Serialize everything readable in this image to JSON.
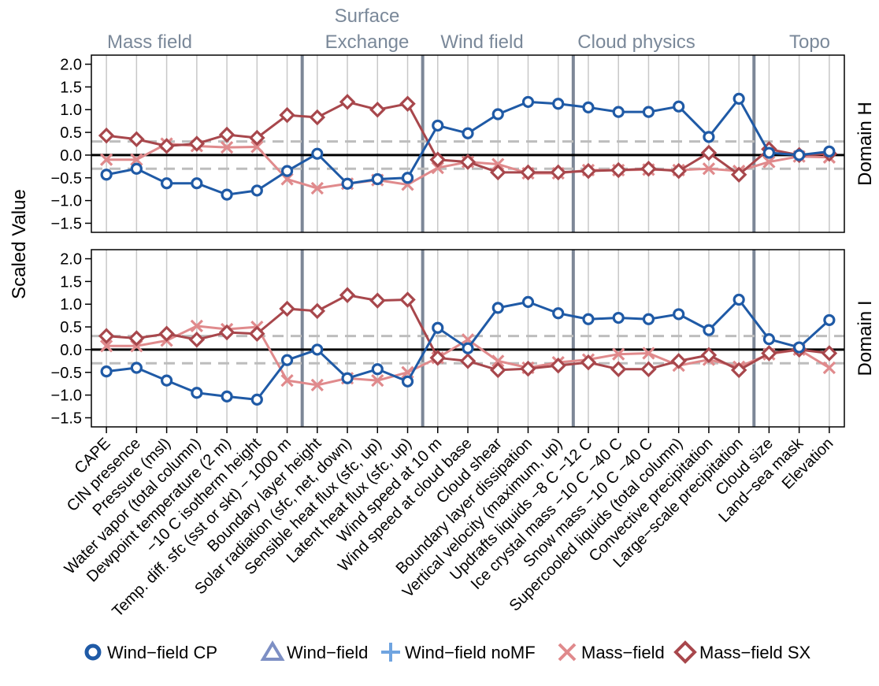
{
  "chart_data": {
    "type": "line",
    "ylabel": "Scaled Value",
    "ylim": [
      -1.7,
      2.2
    ],
    "yticks": [
      "2.0",
      "1.5",
      "1.0",
      "0.5",
      "0.0",
      "−0.5",
      "−1.0",
      "−1.5"
    ],
    "yticks_values": [
      2.0,
      1.5,
      1.0,
      0.5,
      0.0,
      -0.5,
      -1.0,
      -1.5
    ],
    "reference_lines": [
      0.3,
      -0.3
    ],
    "grid": true,
    "legend_position": "bottom",
    "categories": [
      "CAPE",
      "CIN presence",
      "Pressure (msl)",
      "Water vapor (total column)",
      "Dewpoint temperature (2 m)",
      "−10 C isotherm height",
      "Temp. diff. sfc (sst or skt) − 1000 m",
      "Boundary layer height",
      "Solar radiation (sfc, net, down)",
      "Sensible heat flux (sfc, up)",
      "Latent heat flux (sfc, up)",
      "Wind speed at 10 m",
      "Wind speed at cloud base",
      "Cloud shear",
      "Boundary layer dissipation",
      "Vertical velocity (maximum, up)",
      "Updrafts liquids −8 C −12 C",
      "Ice crystal mass −10 C −40 C",
      "Snow mass −10 C −40 C",
      "Supercooled liquids (total column)",
      "Convective precipitation",
      "Large−scale precipitation",
      "Cloud size",
      "Land−sea mask",
      "Elevation"
    ],
    "groups": [
      {
        "label": "Mass field"
      },
      {
        "label": "Surface"
      },
      {
        "label": "Exchange"
      },
      {
        "label": "Wind field"
      },
      {
        "label": "Cloud physics"
      },
      {
        "label": "Topo"
      }
    ],
    "group_separators_after": [
      6,
      10,
      15,
      21
    ],
    "legend": [
      {
        "name": "Wind−field CP",
        "color": "#1f5aa6",
        "marker": "circle"
      },
      {
        "name": "Wind−field",
        "color": "#7d8fc4",
        "marker": "triangle"
      },
      {
        "name": "Wind−field noMF",
        "color": "#6fa4e0",
        "marker": "plus"
      },
      {
        "name": "Mass−field",
        "color": "#e08a8c",
        "marker": "cross"
      },
      {
        "name": "Mass−field SX",
        "color": "#a8474c",
        "marker": "diamond"
      }
    ],
    "panels": [
      {
        "label": "Domain H",
        "series": [
          {
            "name": "Mass−field",
            "values": [
              -0.1,
              -0.1,
              0.25,
              0.2,
              0.17,
              0.18,
              -0.53,
              -0.73,
              -0.63,
              -0.55,
              -0.65,
              -0.28,
              -0.15,
              -0.2,
              -0.4,
              -0.4,
              -0.33,
              -0.33,
              -0.32,
              -0.33,
              -0.3,
              -0.35,
              -0.15,
              -0.03,
              -0.05
            ]
          },
          {
            "name": "Mass−field SX",
            "values": [
              0.43,
              0.35,
              0.2,
              0.25,
              0.45,
              0.38,
              0.88,
              0.83,
              1.17,
              1.0,
              1.13,
              -0.1,
              -0.15,
              -0.38,
              -0.38,
              -0.38,
              -0.35,
              -0.33,
              -0.3,
              -0.35,
              0.05,
              -0.43,
              0.13,
              0.0,
              0.03
            ]
          },
          {
            "name": "Wind−field CP",
            "values": [
              -0.43,
              -0.3,
              -0.62,
              -0.62,
              -0.87,
              -0.78,
              -0.35,
              0.03,
              -0.63,
              -0.53,
              -0.5,
              0.65,
              0.48,
              0.9,
              1.17,
              1.13,
              1.05,
              0.95,
              0.95,
              1.07,
              0.4,
              1.24,
              0.05,
              0.0,
              0.08
            ]
          }
        ]
      },
      {
        "label": "Domain I",
        "series": [
          {
            "name": "Mass−field",
            "values": [
              0.08,
              0.08,
              0.2,
              0.52,
              0.45,
              0.5,
              -0.68,
              -0.78,
              -0.63,
              -0.68,
              -0.5,
              -0.18,
              0.22,
              -0.25,
              -0.4,
              -0.28,
              -0.22,
              -0.1,
              -0.08,
              -0.35,
              -0.22,
              -0.38,
              -0.1,
              0.0,
              -0.4
            ]
          },
          {
            "name": "Mass−field SX",
            "values": [
              0.3,
              0.25,
              0.35,
              0.22,
              0.38,
              0.35,
              0.9,
              0.85,
              1.2,
              1.08,
              1.1,
              -0.18,
              -0.25,
              -0.45,
              -0.42,
              -0.35,
              -0.28,
              -0.43,
              -0.43,
              -0.25,
              -0.12,
              -0.45,
              -0.08,
              0.0,
              -0.08
            ]
          },
          {
            "name": "Wind−field CP",
            "values": [
              -0.48,
              -0.4,
              -0.68,
              -0.95,
              -1.03,
              -1.1,
              -0.23,
              0.0,
              -0.63,
              -0.43,
              -0.7,
              0.48,
              0.03,
              0.92,
              1.05,
              0.8,
              0.67,
              0.7,
              0.67,
              0.78,
              0.43,
              1.1,
              0.23,
              0.05,
              0.65
            ]
          }
        ]
      }
    ]
  }
}
